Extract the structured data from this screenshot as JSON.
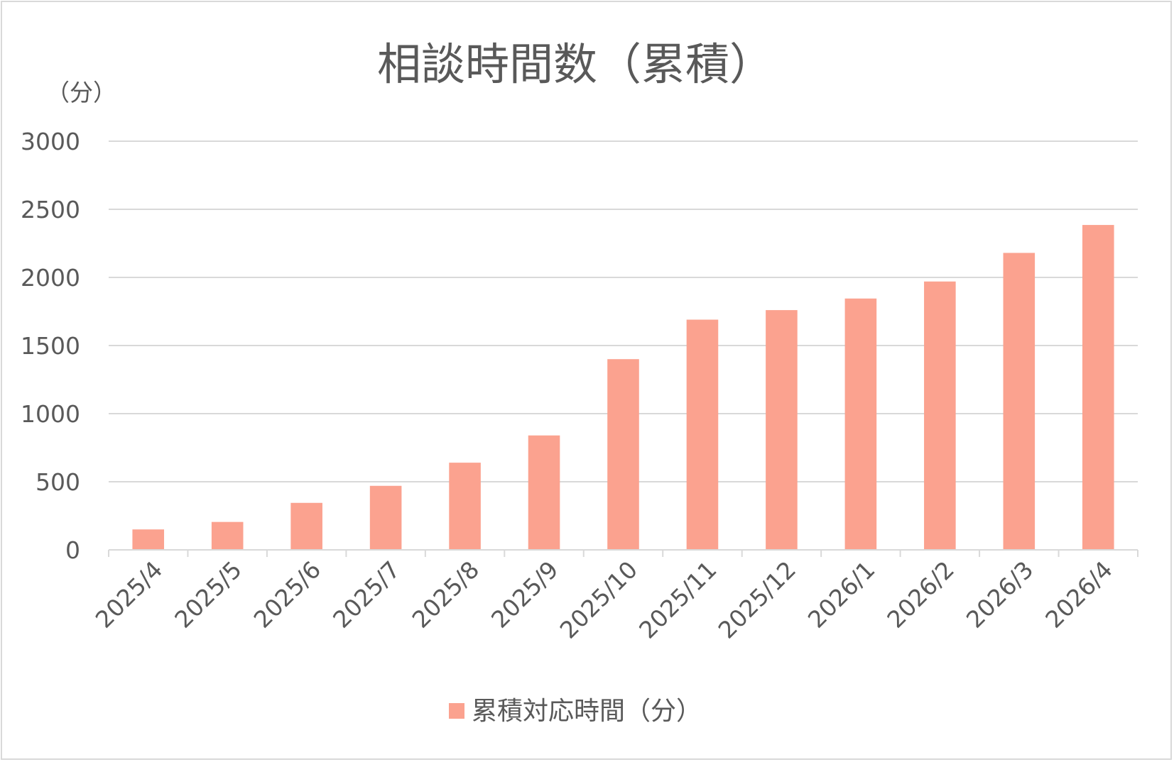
{
  "chart_data": {
    "type": "bar",
    "title": "相談時間数（累積）",
    "yunit": "（分）",
    "categories": [
      "2025/4",
      "2025/5",
      "2025/6",
      "2025/7",
      "2025/8",
      "2025/9",
      "2025/10",
      "2025/11",
      "2025/12",
      "2026/1",
      "2026/2",
      "2026/3",
      "2026/4"
    ],
    "series": [
      {
        "name": "累積対応時間（分）",
        "values": [
          150,
          205,
          345,
          470,
          640,
          840,
          1400,
          1690,
          1760,
          1845,
          1970,
          2180,
          2385
        ]
      }
    ],
    "ylim": [
      0,
      3000
    ],
    "yticks": [
      0,
      500,
      1000,
      1500,
      2000,
      2500,
      3000
    ],
    "grid": true,
    "legend_position": "bottom",
    "colors": {
      "bar": "#fba28f",
      "grid": "#d9d9d9",
      "text": "#595959"
    }
  }
}
